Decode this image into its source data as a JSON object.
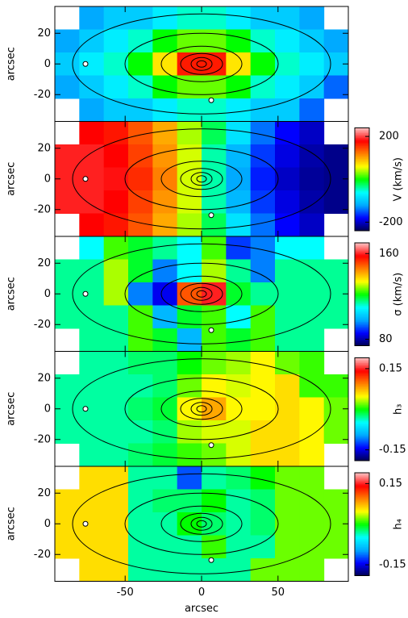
{
  "colormap": [
    "#000050",
    "#0000ff",
    "#00aaff",
    "#00ffff",
    "#00ff00",
    "#ffff00",
    "#ff8000",
    "#ff0000",
    "#ffc0c0"
  ],
  "chart_data": [
    {
      "type": "heatmap",
      "ylabel": "arcsec",
      "xlim": [
        -96,
        96
      ],
      "ylim": [
        -37.5,
        37.5
      ],
      "xticks": [
        -50,
        0,
        50
      ],
      "yticks": [
        -20,
        0,
        20
      ],
      "clim": [
        0,
        1
      ],
      "x": [
        -88,
        -72,
        -56,
        -40,
        -24,
        -8,
        8,
        24,
        40,
        56,
        72,
        88
      ],
      "y": [
        30,
        15,
        0,
        -15,
        -30
      ],
      "z": [
        [
          null,
          0.25,
          0.3,
          0.3,
          0.35,
          0.4,
          0.4,
          0.35,
          0.3,
          0.3,
          0.25,
          null
        ],
        [
          0.25,
          0.3,
          0.35,
          0.4,
          0.5,
          0.55,
          0.55,
          0.5,
          0.4,
          0.35,
          0.3,
          0.25
        ],
        [
          0.3,
          0.35,
          0.4,
          0.5,
          0.65,
          0.85,
          0.85,
          0.65,
          0.5,
          0.4,
          0.35,
          0.3
        ],
        [
          0.25,
          0.3,
          0.35,
          0.4,
          0.5,
          0.55,
          0.55,
          0.5,
          0.4,
          0.35,
          0.3,
          0.2
        ],
        [
          null,
          0.25,
          0.3,
          0.3,
          0.35,
          0.4,
          0.4,
          0.35,
          0.3,
          0.3,
          0.2,
          null
        ]
      ]
    },
    {
      "type": "heatmap",
      "ylabel": "arcsec",
      "xlim": [
        -96,
        96
      ],
      "ylim": [
        -37.5,
        37.5
      ],
      "xticks": [
        -50,
        0,
        50
      ],
      "yticks": [
        -20,
        0,
        20
      ],
      "clim": [
        -240,
        240
      ],
      "colorbar": {
        "label": "V (km/s)",
        "ticks": [
          200,
          -200
        ]
      },
      "x": [
        -88,
        -72,
        -56,
        -40,
        -24,
        -8,
        8,
        24,
        40,
        56,
        72,
        88
      ],
      "y": [
        30,
        15,
        0,
        -15,
        -30
      ],
      "z": [
        [
          null,
          180,
          170,
          140,
          100,
          40,
          -20,
          -80,
          -140,
          -180,
          -200,
          null
        ],
        [
          190,
          190,
          180,
          150,
          110,
          50,
          -40,
          -110,
          -160,
          -190,
          -210,
          -220
        ],
        [
          190,
          190,
          185,
          160,
          120,
          50,
          -40,
          -120,
          -170,
          -200,
          -215,
          -220
        ],
        [
          190,
          190,
          180,
          150,
          110,
          50,
          -40,
          -110,
          -160,
          -190,
          -210,
          -220
        ],
        [
          null,
          180,
          170,
          140,
          100,
          40,
          -20,
          -80,
          -140,
          -180,
          -200,
          null
        ]
      ]
    },
    {
      "type": "heatmap",
      "ylabel": "arcsec",
      "xlim": [
        -96,
        96
      ],
      "ylim": [
        -37.5,
        37.5
      ],
      "xticks": [
        -50,
        0,
        50
      ],
      "yticks": [
        -20,
        0,
        20
      ],
      "clim": [
        74,
        170
      ],
      "colorbar": {
        "label": "σ (km/s)",
        "ticks": [
          160,
          80
        ]
      },
      "x": [
        -88,
        -72,
        -56,
        -40,
        -24,
        -8,
        8,
        24,
        40,
        56,
        72,
        88
      ],
      "y": [
        30,
        15,
        0,
        -15,
        -30
      ],
      "z": [
        [
          null,
          110,
          125,
          120,
          115,
          110,
          125,
          90,
          95,
          110,
          110,
          null
        ],
        [
          115,
          115,
          130,
          120,
          95,
          110,
          130,
          115,
          95,
          115,
          115,
          115
        ],
        [
          115,
          115,
          130,
          95,
          85,
          150,
          160,
          120,
          115,
          115,
          115,
          115
        ],
        [
          115,
          115,
          115,
          125,
          100,
          120,
          125,
          110,
          125,
          115,
          115,
          115
        ],
        [
          null,
          115,
          115,
          125,
          120,
          100,
          125,
          120,
          125,
          115,
          115,
          null
        ]
      ]
    },
    {
      "type": "heatmap",
      "ylabel": "arcsec",
      "xlim": [
        -96,
        96
      ],
      "ylim": [
        -37.5,
        37.5
      ],
      "xticks": [
        -50,
        0,
        50
      ],
      "yticks": [
        -20,
        0,
        20
      ],
      "clim": [
        -0.19,
        0.19
      ],
      "colorbar": {
        "label": "h₃",
        "ticks": [
          0.15,
          -0.15
        ]
      },
      "x": [
        -88,
        -72,
        -56,
        -40,
        -24,
        -8,
        8,
        24,
        40,
        56,
        72,
        88
      ],
      "y": [
        30,
        15,
        0,
        -15,
        -30
      ],
      "z": [
        [
          null,
          -0.03,
          -0.03,
          -0.02,
          -0.02,
          0.0,
          0.02,
          0.03,
          0.05,
          0.02,
          0.01,
          null
        ],
        [
          -0.03,
          -0.03,
          -0.03,
          -0.03,
          -0.02,
          0.02,
          0.05,
          0.04,
          0.05,
          0.06,
          0.01,
          0.01
        ],
        [
          -0.03,
          -0.03,
          -0.03,
          -0.02,
          -0.01,
          0.05,
          0.08,
          0.05,
          0.05,
          0.06,
          0.05,
          0.02
        ],
        [
          -0.03,
          -0.03,
          -0.03,
          -0.03,
          -0.02,
          0.03,
          0.04,
          0.04,
          0.06,
          0.06,
          0.05,
          0.02
        ],
        [
          null,
          -0.03,
          -0.03,
          -0.02,
          -0.01,
          0.01,
          0.02,
          0.04,
          0.06,
          0.06,
          0.05,
          null
        ]
      ]
    },
    {
      "type": "heatmap",
      "ylabel": "arcsec",
      "xlabel": "arcsec",
      "xlim": [
        -96,
        96
      ],
      "ylim": [
        -37.5,
        37.5
      ],
      "xticks": [
        -50,
        0,
        50
      ],
      "yticks": [
        -20,
        0,
        20
      ],
      "clim": [
        -0.19,
        0.19
      ],
      "colorbar": {
        "label": "h₄",
        "ticks": [
          0.15,
          -0.15
        ]
      },
      "x": [
        -88,
        -72,
        -56,
        -40,
        -24,
        -8,
        8,
        24,
        40,
        56,
        72,
        88
      ],
      "y": [
        30,
        15,
        0,
        -15,
        -30
      ],
      "z": [
        [
          null,
          0.06,
          0.06,
          -0.03,
          -0.03,
          -0.12,
          -0.03,
          -0.02,
          0.0,
          0.02,
          0.02,
          null
        ],
        [
          0.06,
          0.06,
          0.06,
          -0.03,
          -0.02,
          -0.02,
          0.0,
          -0.03,
          -0.02,
          0.02,
          0.02,
          0.02
        ],
        [
          0.06,
          0.06,
          0.06,
          -0.03,
          -0.03,
          0.0,
          -0.02,
          -0.03,
          -0.02,
          0.02,
          0.02,
          0.02
        ],
        [
          0.06,
          0.06,
          0.06,
          -0.03,
          -0.03,
          -0.03,
          0.01,
          -0.03,
          -0.03,
          0.02,
          0.02,
          0.02
        ],
        [
          null,
          0.06,
          0.06,
          -0.03,
          -0.03,
          -0.03,
          -0.03,
          -0.03,
          0.02,
          0.02,
          0.02,
          null
        ]
      ]
    }
  ]
}
